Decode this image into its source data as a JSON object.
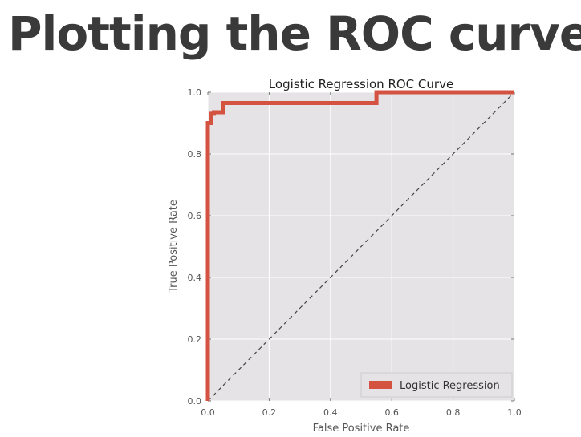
{
  "slide": {
    "title": "Plotting the ROC curve"
  },
  "colors": {
    "plot_background": "#e5e3e6",
    "grid": "#ffffff",
    "roc_line": "#d35240",
    "diagonal": "#444444",
    "axis_text": "#555555"
  },
  "chart_data": {
    "type": "line",
    "title": "Logistic Regression ROC Curve",
    "xlabel": "False Positive Rate",
    "ylabel": "True Positive Rate",
    "xlim": [
      0.0,
      1.0
    ],
    "ylim": [
      0.0,
      1.0
    ],
    "x_ticks": [
      "0.0",
      "0.2",
      "0.4",
      "0.6",
      "0.8",
      "1.0"
    ],
    "y_ticks": [
      "0.0",
      "0.2",
      "0.4",
      "0.6",
      "0.8",
      "1.0"
    ],
    "grid": true,
    "legend_position": "bottom-right",
    "series": [
      {
        "name": "Logistic Regression",
        "color": "#d35240",
        "x": [
          0.0,
          0.0,
          0.0,
          0.01,
          0.01,
          0.02,
          0.02,
          0.05,
          0.05,
          0.55,
          0.55,
          1.0
        ],
        "y": [
          0.0,
          0.02,
          0.9,
          0.9,
          0.93,
          0.93,
          0.935,
          0.935,
          0.965,
          0.965,
          1.0,
          1.0
        ]
      }
    ],
    "reference_line": {
      "x": [
        0.0,
        1.0
      ],
      "y": [
        0.0,
        1.0
      ],
      "style": "dashed"
    }
  }
}
